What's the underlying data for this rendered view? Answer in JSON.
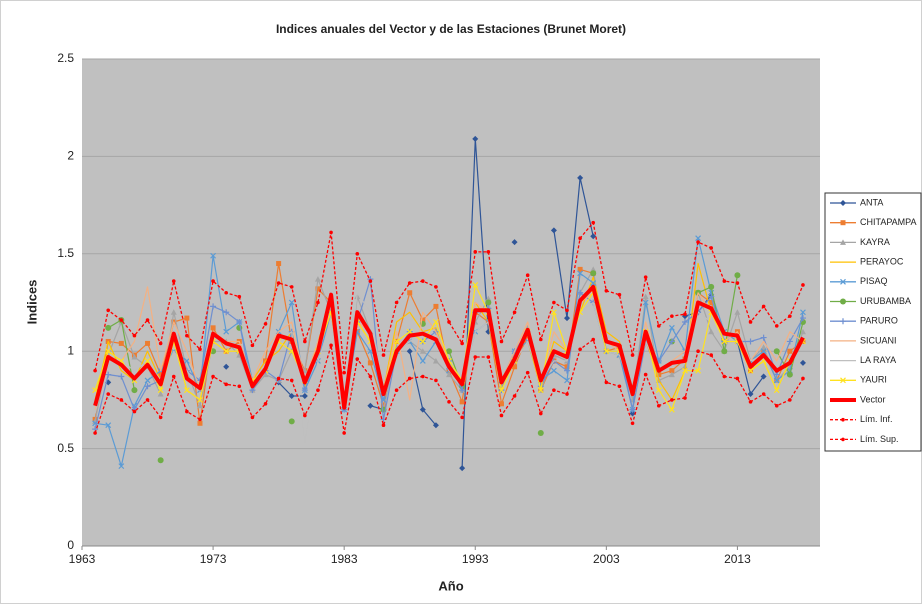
{
  "chart_data": {
    "type": "line",
    "title": "Indices anuales del Vector y de las Estaciones (Brunet Moret)",
    "x_label": "Año",
    "y_label": "Indices",
    "xlim": [
      1963,
      2019.3
    ],
    "xticks": [
      1963,
      1973,
      1983,
      1993,
      2003,
      2013
    ],
    "ylim": [
      0,
      2.5
    ],
    "yticks": [
      0,
      0.5,
      1,
      1.5,
      2,
      2.5
    ],
    "grid": true,
    "legend": "right",
    "x": [
      1964,
      1965,
      1966,
      1967,
      1968,
      1969,
      1970,
      1971,
      1972,
      1973,
      1974,
      1975,
      1976,
      1977,
      1978,
      1979,
      1980,
      1981,
      1982,
      1983,
      1984,
      1985,
      1986,
      1987,
      1988,
      1989,
      1990,
      1991,
      1992,
      1993,
      1994,
      1995,
      1996,
      1997,
      1998,
      1999,
      2000,
      2001,
      2002,
      2003,
      2004,
      2005,
      2006,
      2007,
      2008,
      2009,
      2010,
      2011,
      2012,
      2013,
      2014,
      2015,
      2016,
      2017,
      2018
    ],
    "series": [
      {
        "name": "ANTA",
        "color": "#2f5597",
        "marker": "diamond",
        "values": [
          null,
          0.84,
          null,
          null,
          null,
          null,
          null,
          null,
          null,
          null,
          0.92,
          null,
          null,
          null,
          0.84,
          0.77,
          0.77,
          null,
          null,
          null,
          null,
          0.72,
          0.7,
          null,
          1.0,
          0.7,
          0.62,
          null,
          0.4,
          2.09,
          1.1,
          null,
          1.56,
          null,
          null,
          1.62,
          1.17,
          1.89,
          1.59,
          null,
          null,
          0.68,
          null,
          null,
          null,
          1.18,
          1.2,
          1.29,
          null,
          1.05,
          0.78,
          0.87,
          null,
          null,
          0.94
        ]
      },
      {
        "name": "CHITAPAMPA",
        "color": "#ed7d31",
        "marker": "square",
        "values": [
          0.65,
          1.05,
          1.04,
          0.98,
          1.04,
          0.88,
          1.15,
          1.17,
          0.63,
          1.12,
          1.0,
          1.05,
          0.85,
          0.95,
          1.45,
          1.05,
          0.9,
          1.32,
          1.25,
          0.75,
          1.1,
          0.94,
          0.72,
          1.05,
          1.3,
          1.16,
          1.23,
          0.9,
          0.74,
          1.2,
          1.15,
          0.73,
          0.92,
          1.08,
          0.8,
          0.95,
          0.92,
          1.42,
          1.4,
          1.0,
          1.02,
          0.8,
          1.05,
          0.88,
          0.9,
          0.96,
          1.3,
          1.25,
          1.05,
          1.1,
          0.9,
          1.0,
          0.85,
          1.0,
          1.05
        ]
      },
      {
        "name": "KAYRA",
        "color": "#a5a5a5",
        "marker": "triangle",
        "values": [
          0.64,
          0.98,
          1.15,
          0.97,
          0.92,
          0.78,
          1.2,
          0.9,
          0.72,
          1.05,
          1.05,
          0.98,
          0.8,
          0.88,
          0.85,
          1.0,
          0.9,
          1.37,
          1.2,
          0.72,
          1.28,
          1.1,
          0.7,
          1.02,
          1.05,
          1.0,
          0.95,
          0.88,
          0.8,
          1.15,
          1.27,
          0.82,
          0.95,
          1.12,
          0.8,
          0.98,
          0.95,
          1.3,
          1.42,
          1.0,
          0.98,
          0.75,
          1.28,
          0.85,
          0.88,
          0.92,
          1.3,
          1.1,
          1.0,
          1.2,
          0.95,
          1.02,
          0.85,
          0.92,
          1.1
        ]
      },
      {
        "name": "PERAYOC",
        "color": "#ffc000",
        "marker": "none",
        "values": [
          0.75,
          1.05,
          0.9,
          0.85,
          1.0,
          0.85,
          1.05,
          0.8,
          0.75,
          1.05,
          1.0,
          1.0,
          0.85,
          0.95,
          1.0,
          1.1,
          0.82,
          1.05,
          1.25,
          0.75,
          1.15,
          1.05,
          0.8,
          1.15,
          1.2,
          1.1,
          1.12,
          0.9,
          0.85,
          1.25,
          1.15,
          0.8,
          1.0,
          1.05,
          0.82,
          1.05,
          1.0,
          1.2,
          1.38,
          1.1,
          1.05,
          0.8,
          1.1,
          0.85,
          0.75,
          0.9,
          1.45,
          1.2,
          1.1,
          1.05,
          0.9,
          0.95,
          0.8,
          0.95,
          1.05
        ]
      },
      {
        "name": "PISAQ",
        "color": "#5b9bd5",
        "marker": "x",
        "values": [
          0.63,
          0.62,
          0.41,
          0.72,
          0.85,
          0.9,
          1.0,
          0.95,
          0.8,
          1.49,
          1.1,
          1.15,
          0.85,
          0.9,
          1.1,
          1.25,
          0.8,
          0.95,
          1.2,
          0.7,
          1.1,
          1.0,
          0.75,
          1.0,
          1.05,
          0.95,
          1.05,
          0.9,
          0.85,
          1.1,
          1.15,
          0.85,
          1.0,
          1.05,
          0.85,
          0.9,
          0.85,
          1.4,
          1.35,
          1.0,
          0.98,
          0.7,
          1.25,
          0.95,
          1.12,
          1.0,
          1.58,
          1.3,
          1.1,
          1.05,
          0.95,
          1.0,
          0.85,
          0.9,
          1.2
        ]
      },
      {
        "name": "URUBAMBA",
        "color": "#70ad47",
        "marker": "circle",
        "values": [
          null,
          1.12,
          1.16,
          0.8,
          null,
          0.44,
          null,
          null,
          null,
          1.0,
          null,
          1.12,
          null,
          null,
          null,
          0.64,
          null,
          null,
          null,
          null,
          null,
          null,
          0.7,
          null,
          null,
          1.14,
          null,
          1.0,
          0.82,
          null,
          1.25,
          null,
          null,
          null,
          0.58,
          null,
          null,
          null,
          1.4,
          null,
          null,
          null,
          null,
          null,
          1.05,
          null,
          1.3,
          1.33,
          1.0,
          1.39,
          null,
          null,
          1.0,
          0.88,
          1.15
        ]
      },
      {
        "name": "PARURO",
        "color": "#6f8fd0",
        "marker": "plus",
        "values": [
          0.6,
          0.88,
          0.87,
          0.7,
          0.82,
          0.85,
          1.05,
          0.9,
          0.85,
          1.23,
          1.2,
          1.15,
          0.8,
          0.9,
          0.85,
          1.1,
          0.8,
          1.0,
          1.25,
          0.7,
          1.15,
          1.37,
          0.65,
          1.0,
          1.1,
          1.05,
          1.1,
          0.95,
          0.8,
          1.2,
          1.22,
          0.8,
          1.0,
          1.1,
          0.82,
          0.95,
          0.9,
          1.3,
          1.25,
          1.0,
          1.0,
          0.7,
          1.05,
          0.95,
          1.05,
          1.15,
          1.2,
          1.28,
          1.05,
          1.05,
          1.05,
          1.07,
          0.88,
          1.05,
          1.17
        ]
      },
      {
        "name": "SICUANI",
        "color": "#f4b183",
        "marker": "none",
        "values": [
          0.7,
          1.0,
          0.95,
          1.05,
          1.33,
          0.9,
          1.15,
          1.0,
          0.8,
          1.1,
          1.05,
          1.05,
          0.85,
          1.0,
          1.1,
          1.15,
          0.85,
          1.05,
          1.2,
          0.75,
          1.15,
          1.1,
          0.8,
          1.1,
          0.75,
          1.2,
          1.1,
          0.95,
          0.85,
          1.25,
          1.2,
          0.85,
          1.0,
          1.15,
          0.85,
          1.1,
          1.0,
          1.25,
          1.3,
          1.05,
          1.0,
          0.8,
          1.15,
          0.9,
          0.95,
          1.0,
          1.3,
          1.2,
          1.05,
          1.1,
          0.95,
          1.05,
          0.95,
          1.1,
          1.05
        ]
      },
      {
        "name": "LA RAYA",
        "color": "#bfbfbf",
        "marker": "none",
        "values": [
          0.68,
          0.95,
          0.95,
          0.9,
          0.95,
          0.85,
          1.0,
          0.9,
          0.8,
          1.05,
          1.0,
          1.0,
          0.85,
          0.9,
          1.05,
          1.1,
          0.53,
          0.95,
          1.15,
          0.75,
          1.3,
          1.2,
          0.8,
          1.0,
          1.05,
          1.1,
          1.05,
          0.9,
          0.85,
          1.1,
          1.15,
          0.85,
          0.95,
          1.05,
          0.85,
          0.95,
          0.95,
          1.2,
          1.25,
          1.0,
          0.98,
          0.8,
          1.05,
          0.9,
          0.95,
          0.95,
          1.2,
          1.15,
          1.05,
          1.05,
          0.95,
          0.98,
          0.9,
          0.95,
          1.05
        ]
      },
      {
        "name": "YAURI",
        "color": "#ffe21f",
        "marker": "x",
        "values": [
          0.8,
          1.0,
          0.95,
          0.85,
          0.95,
          0.8,
          1.05,
          0.8,
          0.75,
          1.05,
          1.0,
          1.0,
          0.85,
          0.9,
          1.05,
          1.0,
          0.85,
          1.0,
          1.2,
          0.75,
          1.15,
          1.05,
          0.8,
          1.05,
          1.1,
          1.05,
          1.15,
          0.95,
          0.85,
          1.34,
          1.2,
          0.8,
          0.95,
          1.1,
          0.8,
          1.2,
          1.0,
          1.2,
          1.3,
          1.0,
          1.0,
          0.8,
          1.1,
          0.8,
          0.7,
          0.9,
          0.9,
          1.2,
          1.05,
          1.05,
          0.9,
          0.95,
          0.8,
          0.95,
          1.05
        ]
      },
      {
        "name": "Vector",
        "color": "#ff0000",
        "marker": "none",
        "style": "thick",
        "values": [
          0.72,
          0.97,
          0.93,
          0.86,
          0.93,
          0.83,
          1.09,
          0.86,
          0.81,
          1.09,
          1.04,
          1.02,
          0.82,
          0.91,
          1.08,
          1.06,
          0.84,
          1.0,
          1.29,
          0.71,
          1.2,
          1.09,
          0.78,
          1.0,
          1.08,
          1.09,
          1.06,
          0.92,
          0.83,
          1.21,
          1.21,
          0.84,
          0.96,
          1.11,
          0.85,
          1.0,
          0.97,
          1.26,
          1.33,
          1.05,
          1.03,
          0.78,
          1.1,
          0.9,
          0.94,
          0.95,
          1.25,
          1.22,
          1.09,
          1.08,
          0.92,
          0.98,
          0.9,
          0.94,
          1.07
        ]
      },
      {
        "name": "Lím. Inf.",
        "color": "#ff0000",
        "marker": "dot",
        "style": "dashed",
        "values": [
          0.58,
          0.78,
          0.75,
          0.69,
          0.75,
          0.66,
          0.87,
          0.69,
          0.65,
          0.87,
          0.83,
          0.82,
          0.66,
          0.73,
          0.86,
          0.85,
          0.67,
          0.8,
          1.03,
          0.58,
          0.96,
          0.87,
          0.62,
          0.8,
          0.86,
          0.87,
          0.85,
          0.74,
          0.66,
          0.97,
          0.97,
          0.67,
          0.77,
          0.89,
          0.68,
          0.8,
          0.78,
          1.01,
          1.06,
          0.84,
          0.82,
          0.63,
          0.88,
          0.72,
          0.75,
          0.76,
          1.0,
          0.98,
          0.87,
          0.86,
          0.74,
          0.78,
          0.72,
          0.75,
          0.86
        ]
      },
      {
        "name": "Lím. Sup.",
        "color": "#ff0000",
        "marker": "dot",
        "style": "dashed",
        "values": [
          0.9,
          1.21,
          1.16,
          1.08,
          1.16,
          1.04,
          1.36,
          1.08,
          1.01,
          1.36,
          1.3,
          1.28,
          1.03,
          1.14,
          1.35,
          1.33,
          1.05,
          1.25,
          1.61,
          0.89,
          1.5,
          1.36,
          0.98,
          1.25,
          1.35,
          1.36,
          1.33,
          1.15,
          1.04,
          1.51,
          1.51,
          1.05,
          1.2,
          1.39,
          1.06,
          1.25,
          1.21,
          1.58,
          1.66,
          1.31,
          1.29,
          0.98,
          1.38,
          1.13,
          1.18,
          1.19,
          1.56,
          1.53,
          1.36,
          1.35,
          1.15,
          1.23,
          1.13,
          1.18,
          1.34
        ]
      }
    ]
  }
}
